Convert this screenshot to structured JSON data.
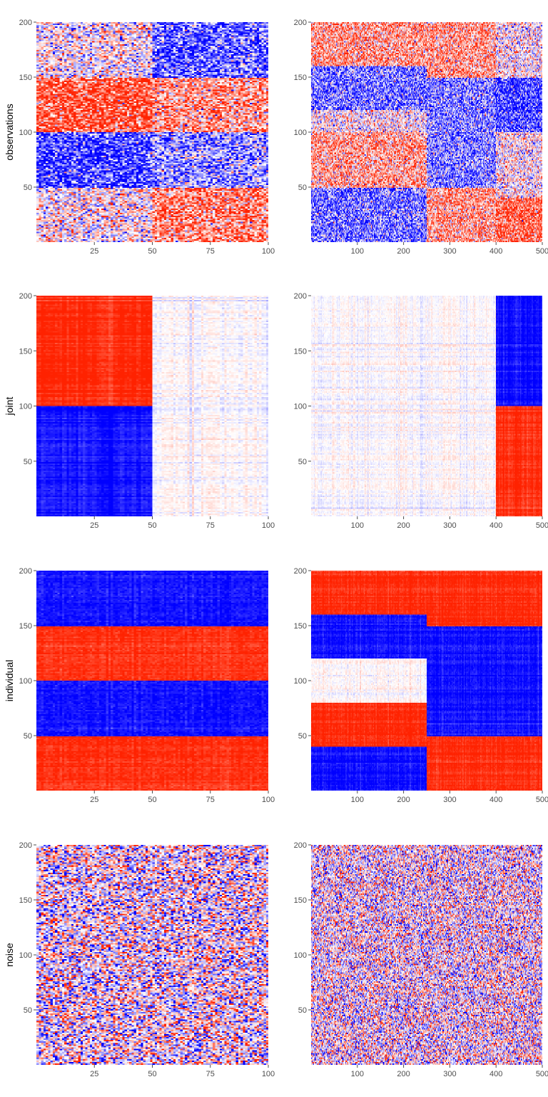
{
  "colors": {
    "low": "#0000ff",
    "mid": "#ffffff",
    "high": "#ff2200",
    "tick": "#4d4d4d"
  },
  "chart_data": [
    {
      "type": "heatmap",
      "id": "obs-1",
      "ylabel": "observations",
      "xlim": [
        0,
        100
      ],
      "ylim": [
        0,
        200
      ],
      "xticks": [
        "25",
        "50",
        "75",
        "100"
      ],
      "yticks": [
        "50",
        "100",
        "150",
        "200"
      ],
      "col_bounds": [
        0,
        50,
        100
      ],
      "row_bounds": [
        0,
        50,
        100,
        150,
        200
      ],
      "values": [
        [
          0.05,
          0.55
        ],
        [
          -0.75,
          -0.4
        ],
        [
          0.75,
          0.45
        ],
        [
          0.02,
          -0.6
        ]
      ],
      "noise": 0.45,
      "colstripe": 0
    },
    {
      "type": "heatmap",
      "id": "obs-2",
      "ylabel": "",
      "xlim": [
        0,
        500
      ],
      "ylim": [
        0,
        200
      ],
      "xticks": [
        "100",
        "200",
        "300",
        "400",
        "500"
      ],
      "yticks": [
        "50",
        "100",
        "150",
        "200"
      ],
      "col_bounds": [
        0,
        250,
        400,
        500
      ],
      "row_bounds": [
        0,
        40,
        50,
        80,
        100,
        120,
        150,
        160,
        200
      ],
      "values": [
        [
          -0.55,
          0.45,
          0.7
        ],
        [
          -0.55,
          0.45,
          0.05
        ],
        [
          0.4,
          -0.5,
          0.05
        ],
        [
          0.4,
          -0.5,
          0.05
        ],
        [
          0.03,
          -0.5,
          -0.75
        ],
        [
          -0.55,
          -0.5,
          -0.75
        ],
        [
          -0.55,
          0.45,
          0.03
        ],
        [
          0.45,
          0.45,
          0.03
        ]
      ],
      "noise": 0.45,
      "colstripe": 0
    },
    {
      "type": "heatmap",
      "id": "joint-1",
      "ylabel": "joint",
      "xlim": [
        0,
        100
      ],
      "ylim": [
        0,
        200
      ],
      "xticks": [
        "25",
        "50",
        "75",
        "100"
      ],
      "yticks": [
        "50",
        "100",
        "150",
        "200"
      ],
      "col_bounds": [
        0,
        50,
        100
      ],
      "row_bounds": [
        0,
        100,
        200
      ],
      "values": [
        [
          -0.95,
          0.0
        ],
        [
          0.95,
          0.0
        ]
      ],
      "noise": 0.04,
      "colstripe": 0.06
    },
    {
      "type": "heatmap",
      "id": "joint-2",
      "ylabel": "",
      "xlim": [
        0,
        500
      ],
      "ylim": [
        0,
        200
      ],
      "xticks": [
        "100",
        "200",
        "300",
        "400",
        "500"
      ],
      "yticks": [
        "50",
        "100",
        "150",
        "200"
      ],
      "col_bounds": [
        0,
        400,
        500
      ],
      "row_bounds": [
        0,
        100,
        200
      ],
      "values": [
        [
          0.0,
          0.95
        ],
        [
          0.0,
          -0.95
        ]
      ],
      "noise": 0.04,
      "colstripe": 0.06
    },
    {
      "type": "heatmap",
      "id": "indiv-1",
      "ylabel": "individual",
      "xlim": [
        0,
        100
      ],
      "ylim": [
        0,
        200
      ],
      "xticks": [
        "25",
        "50",
        "75",
        "100"
      ],
      "yticks": [
        "50",
        "100",
        "150",
        "200"
      ],
      "col_bounds": [
        0,
        100
      ],
      "row_bounds": [
        0,
        50,
        100,
        150,
        200
      ],
      "values": [
        [
          0.92
        ],
        [
          -0.92
        ],
        [
          0.92
        ],
        [
          -0.92
        ]
      ],
      "noise": 0.06,
      "colstripe": 0.04
    },
    {
      "type": "heatmap",
      "id": "indiv-2",
      "ylabel": "",
      "xlim": [
        0,
        500
      ],
      "ylim": [
        0,
        200
      ],
      "xticks": [
        "100",
        "200",
        "300",
        "400",
        "500"
      ],
      "yticks": [
        "50",
        "100",
        "150",
        "200"
      ],
      "col_bounds": [
        0,
        250,
        500
      ],
      "row_bounds": [
        0,
        40,
        50,
        80,
        120,
        150,
        160,
        200
      ],
      "values": [
        [
          -0.95,
          0.95
        ],
        [
          0.95,
          0.95
        ],
        [
          0.95,
          -0.95
        ],
        [
          0.02,
          -0.95
        ],
        [
          -0.95,
          -0.95
        ],
        [
          -0.95,
          0.95
        ],
        [
          0.95,
          0.95
        ]
      ],
      "noise": 0.05,
      "colstripe": 0.05
    },
    {
      "type": "heatmap",
      "id": "noise-1",
      "ylabel": "noise",
      "xlim": [
        0,
        100
      ],
      "ylim": [
        0,
        200
      ],
      "xticks": [
        "25",
        "50",
        "75",
        "100"
      ],
      "yticks": [
        "50",
        "100",
        "150",
        "200"
      ],
      "col_bounds": [
        0,
        100
      ],
      "row_bounds": [
        0,
        200
      ],
      "values": [
        [
          0.0
        ]
      ],
      "noise": 0.6,
      "colstripe": 0
    },
    {
      "type": "heatmap",
      "id": "noise-2",
      "ylabel": "",
      "xlim": [
        0,
        500
      ],
      "ylim": [
        0,
        200
      ],
      "xticks": [
        "100",
        "200",
        "300",
        "400",
        "500"
      ],
      "yticks": [
        "50",
        "100",
        "150",
        "200"
      ],
      "col_bounds": [
        0,
        500
      ],
      "row_bounds": [
        0,
        200
      ],
      "values": [
        [
          0.0
        ]
      ],
      "noise": 0.6,
      "colstripe": 0
    }
  ]
}
